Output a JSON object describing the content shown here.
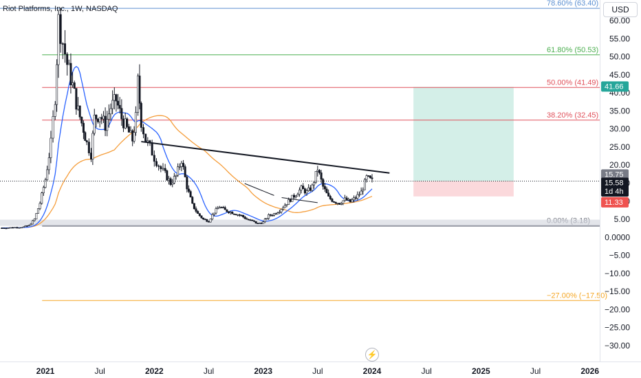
{
  "header": {
    "title": "Riot Platforms, Inc., 1W, NASDAQ",
    "currency": "USD"
  },
  "colors": {
    "up": "#131722",
    "down": "#131722",
    "ma_fast": "#2962ff",
    "ma_slow": "#f59d3a",
    "fib_786": "#5b8fd1",
    "fib_618": "#4caf50",
    "fib_500": "#e0505a",
    "fib_382": "#e0505a",
    "fib_0": "#787b86",
    "fib_neg27": "#f5a623",
    "profit_zone": "#d4efe8",
    "loss_zone": "#fbd9dc"
  },
  "price_tags": [
    {
      "text": "41.66",
      "bg": "#26a69a"
    },
    {
      "text": "15.75",
      "bg": "#787b86"
    },
    {
      "text": "15.58",
      "bg": "#131722"
    },
    {
      "text": "1d 4h",
      "bg": "#131722"
    },
    {
      "text": "11.33",
      "bg": "#ef5350"
    }
  ],
  "chart_data": {
    "type": "candlestick",
    "title": "Riot Platforms, Inc., 1W, NASDAQ",
    "ylim": [
      -33,
      65
    ],
    "xlim": [
      2020.6,
      2026.0
    ],
    "y_ticks": [
      "60.00",
      "55.00",
      "50.00",
      "45.00",
      "40.00",
      "35.00",
      "30.00",
      "25.00",
      "20.00",
      "15.00",
      "10.00",
      "5.00",
      "0.0000",
      "−5.00",
      "−10.00",
      "−15.00",
      "−20.00",
      "−25.00",
      "−30.00"
    ],
    "y_tick_values": [
      60,
      55,
      50,
      45,
      40,
      35,
      30,
      25,
      20,
      15,
      10,
      5,
      0,
      -5,
      -10,
      -15,
      -20,
      -25,
      -30
    ],
    "x_ticks": [
      {
        "label": "2021",
        "x": 2021.0,
        "bold": true
      },
      {
        "label": "Jul",
        "x": 2021.5,
        "bold": false
      },
      {
        "label": "2022",
        "x": 2022.0,
        "bold": true
      },
      {
        "label": "Jul",
        "x": 2022.5,
        "bold": false
      },
      {
        "label": "2023",
        "x": 2023.0,
        "bold": true
      },
      {
        "label": "Jul",
        "x": 2023.5,
        "bold": false
      },
      {
        "label": "2024",
        "x": 2024.0,
        "bold": true
      },
      {
        "label": "Jul",
        "x": 2024.5,
        "bold": false
      },
      {
        "label": "2025",
        "x": 2025.0,
        "bold": true
      },
      {
        "label": "Jul",
        "x": 2025.5,
        "bold": false
      },
      {
        "label": "2026",
        "x": 2026.0,
        "bold": true
      }
    ],
    "fib_levels": [
      {
        "label": "78.60% (63.40)",
        "value": 63.4,
        "color": "#5b8fd1"
      },
      {
        "label": "61.80% (50.53)",
        "value": 50.53,
        "color": "#4caf50"
      },
      {
        "label": "50.00% (41.49)",
        "value": 41.49,
        "color": "#e0505a"
      },
      {
        "label": "38.20% (32.45)",
        "value": 32.45,
        "color": "#e0505a"
      },
      {
        "label": "0.00% (3.18)",
        "value": 3.18,
        "color": "#787b86"
      },
      {
        "label": "−27.00% (−17.50)",
        "value": -17.5,
        "color": "#f5a623"
      }
    ],
    "position": {
      "entry": 15.58,
      "target": 41.66,
      "stop": 11.33,
      "x_start": 2024.38,
      "x_end": 2025.3
    },
    "trendline": {
      "x1": 2021.88,
      "y1": 26.5,
      "x2": 2024.16,
      "y2": 17.8
    },
    "short_lines": [
      {
        "x1": 2022.83,
        "y1": 14.9,
        "x2": 2023.1,
        "y2": 11.6
      },
      {
        "x1": 2023.17,
        "y1": 11.0,
        "x2": 2023.5,
        "y2": 9.6
      }
    ],
    "zero_band": [
      3.18,
      4.9
    ],
    "weekly_close": [
      [
        2020.6,
        2.6
      ],
      [
        2020.7,
        2.7
      ],
      [
        2020.8,
        2.9
      ],
      [
        2020.85,
        3.3
      ],
      [
        2020.9,
        5.0
      ],
      [
        2020.95,
        9.5
      ],
      [
        2021.0,
        16.0
      ],
      [
        2021.05,
        26.0
      ],
      [
        2021.09,
        39.0
      ],
      [
        2021.12,
        60.0
      ],
      [
        2021.16,
        54.0
      ],
      [
        2021.2,
        48.0
      ],
      [
        2021.25,
        42.0
      ],
      [
        2021.3,
        35.0
      ],
      [
        2021.35,
        30.0
      ],
      [
        2021.38,
        26.0
      ],
      [
        2021.42,
        23.0
      ],
      [
        2021.45,
        33.0
      ],
      [
        2021.5,
        34.0
      ],
      [
        2021.55,
        31.0
      ],
      [
        2021.6,
        36.0
      ],
      [
        2021.65,
        38.0
      ],
      [
        2021.7,
        33.0
      ],
      [
        2021.75,
        30.0
      ],
      [
        2021.8,
        27.0
      ],
      [
        2021.83,
        33.0
      ],
      [
        2021.85,
        43.0
      ],
      [
        2021.88,
        32.0
      ],
      [
        2021.92,
        27.0
      ],
      [
        2021.96,
        25.0
      ],
      [
        2022.0,
        22.0
      ],
      [
        2022.06,
        19.0
      ],
      [
        2022.1,
        17.5
      ],
      [
        2022.15,
        15.0
      ],
      [
        2022.2,
        17.0
      ],
      [
        2022.25,
        21.5
      ],
      [
        2022.3,
        14.0
      ],
      [
        2022.35,
        9.0
      ],
      [
        2022.4,
        6.5
      ],
      [
        2022.45,
        5.0
      ],
      [
        2022.5,
        4.5
      ],
      [
        2022.55,
        7.0
      ],
      [
        2022.6,
        8.5
      ],
      [
        2022.65,
        7.5
      ],
      [
        2022.7,
        7.0
      ],
      [
        2022.75,
        6.5
      ],
      [
        2022.8,
        6.0
      ],
      [
        2022.85,
        5.0
      ],
      [
        2022.9,
        4.5
      ],
      [
        2022.95,
        3.8
      ],
      [
        2023.0,
        4.2
      ],
      [
        2023.05,
        6.0
      ],
      [
        2023.1,
        6.5
      ],
      [
        2023.15,
        7.5
      ],
      [
        2023.2,
        9.0
      ],
      [
        2023.25,
        10.5
      ],
      [
        2023.3,
        12.0
      ],
      [
        2023.35,
        13.5
      ],
      [
        2023.4,
        12.5
      ],
      [
        2023.45,
        14.0
      ],
      [
        2023.5,
        19.0
      ],
      [
        2023.55,
        14.0
      ],
      [
        2023.6,
        11.0
      ],
      [
        2023.65,
        10.0
      ],
      [
        2023.7,
        9.5
      ],
      [
        2023.75,
        10.5
      ],
      [
        2023.8,
        9.8
      ],
      [
        2023.85,
        11.0
      ],
      [
        2023.9,
        12.5
      ],
      [
        2023.95,
        16.5
      ],
      [
        2024.0,
        15.58
      ]
    ]
  }
}
